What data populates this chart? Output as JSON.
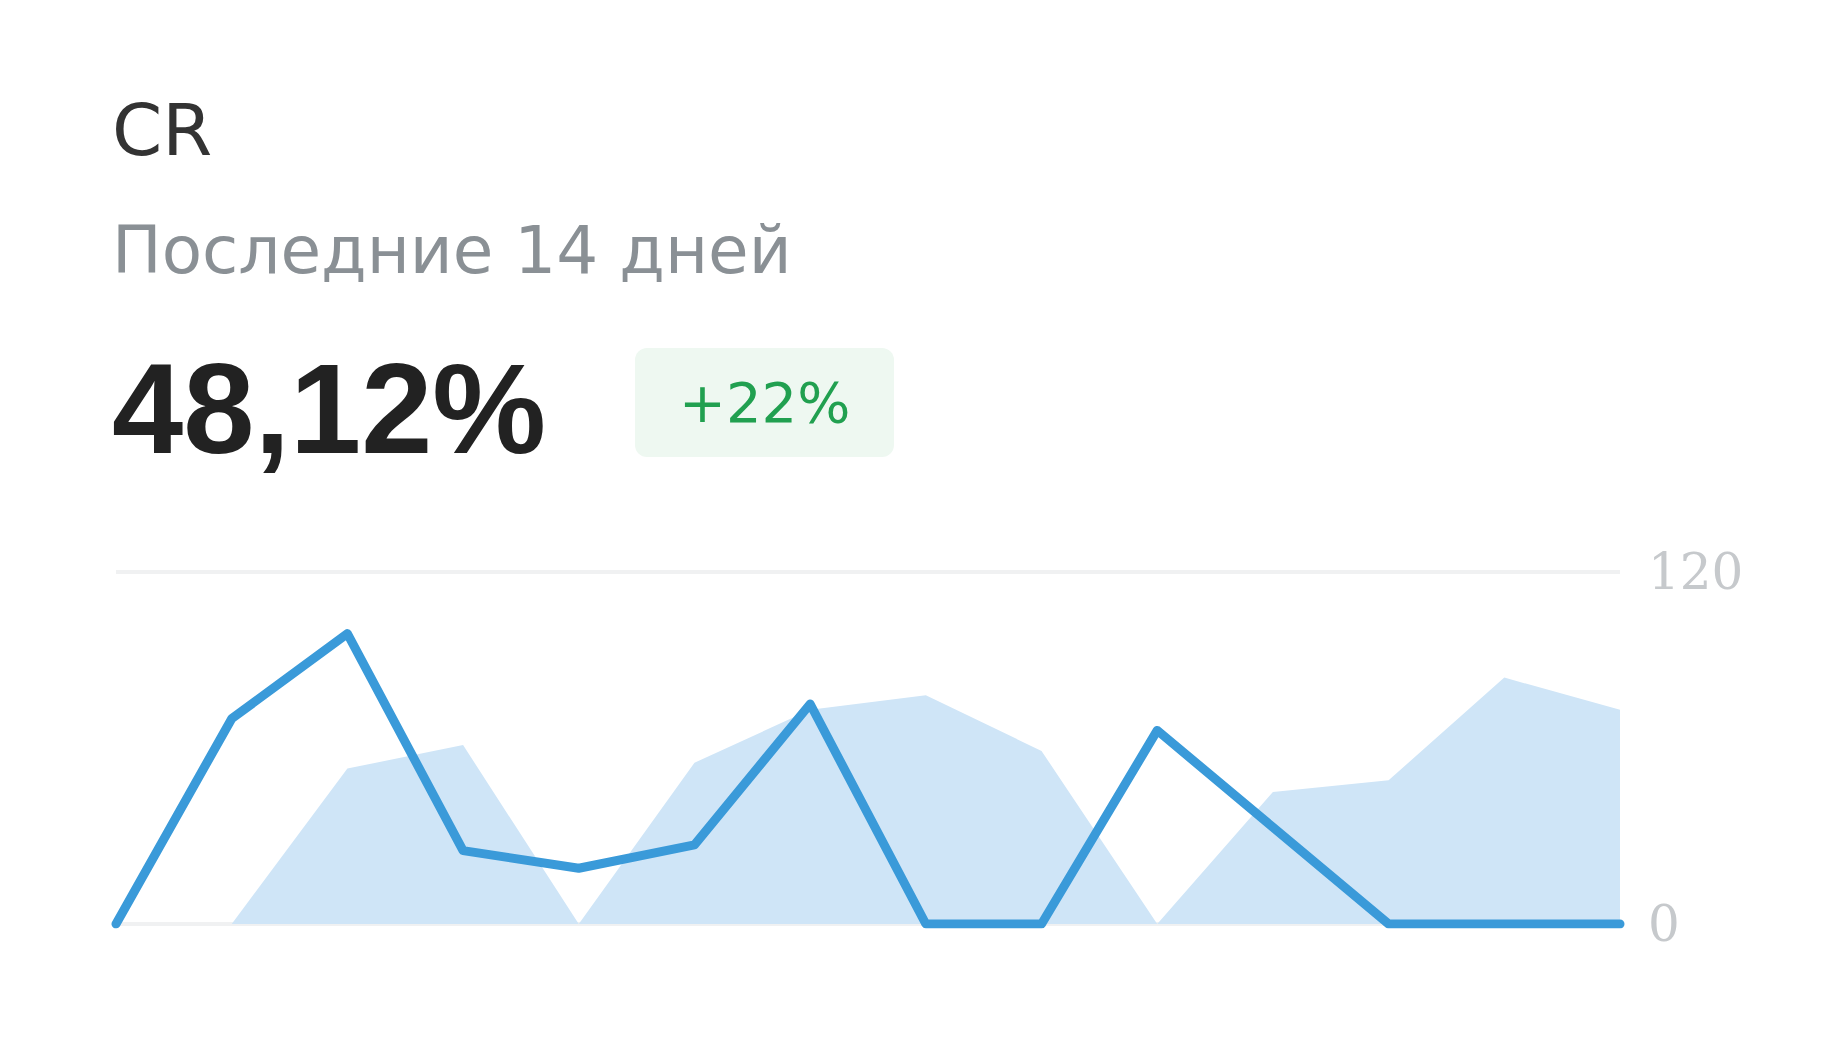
{
  "chart_data": {
    "type": "line",
    "title": "CR",
    "subtitle": "Последние 14 дней",
    "annotations": [
      "48,12%",
      "+22%"
    ],
    "categories": [
      null,
      null,
      null,
      null,
      null,
      null,
      null,
      null,
      null,
      null,
      null,
      null,
      null,
      null
    ],
    "series": [
      {
        "type": "area",
        "color": "#cfe5f7",
        "values": [
          0,
          0,
          53,
          61,
          0,
          55,
          73,
          78,
          59,
          0,
          45,
          49,
          84,
          73
        ]
      },
      {
        "color": "#3a9ad9",
        "values": [
          0,
          70,
          99,
          25,
          19,
          27,
          75,
          0,
          0,
          66,
          33,
          0,
          0,
          0
        ]
      }
    ],
    "ylim": [
      0,
      120
    ],
    "yticks": [
      0,
      120
    ],
    "grid": "y",
    "tick_labels": "y",
    "line_style": "solid"
  }
}
